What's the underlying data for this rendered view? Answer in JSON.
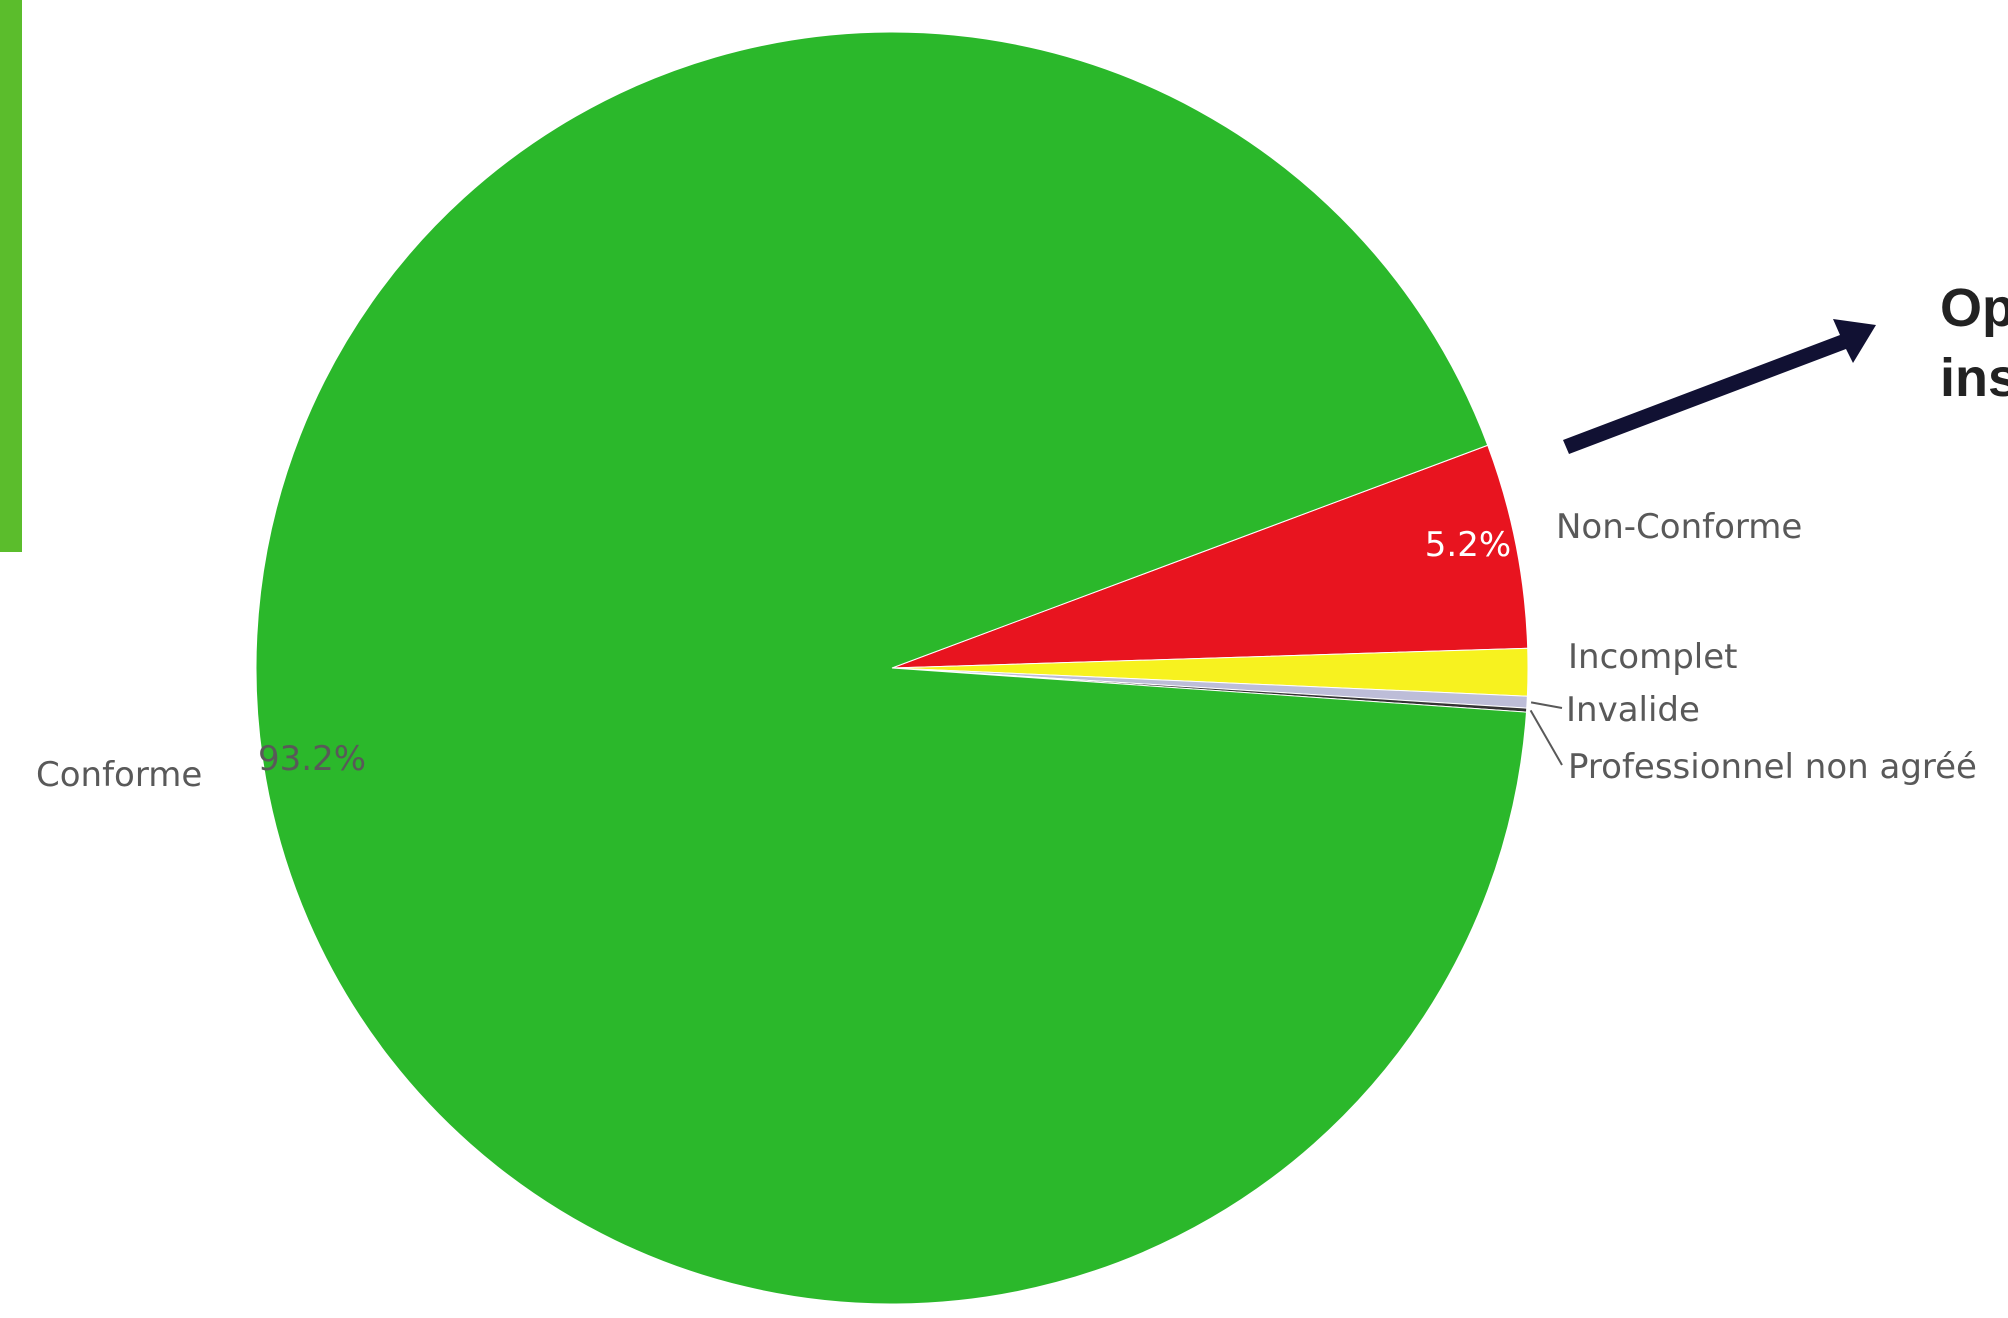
{
  "chart_data": {
    "type": "pie",
    "categories": [
      "Non-Conforme",
      "Incomplet",
      "Invalide",
      "Professionnel non agréé",
      "Conforme"
    ],
    "values": [
      5.2,
      1.2,
      0.3,
      0.1,
      93.2
    ],
    "colors": [
      "#e8141f",
      "#f7f21f",
      "#bdbdd8",
      "#333333",
      "#2bb82b"
    ],
    "labels": [
      "Non-Conforme",
      "Incomplet",
      "Invalide",
      "Professionnel non agréé",
      "Conforme"
    ],
    "value_labels": {
      "Non-Conforme": "5.2%",
      "Conforme": "93.2%"
    },
    "legend": "none"
  },
  "annotation": {
    "line1": "Op",
    "line2": "ins"
  },
  "accent_bar_color": "#5bbd2c"
}
